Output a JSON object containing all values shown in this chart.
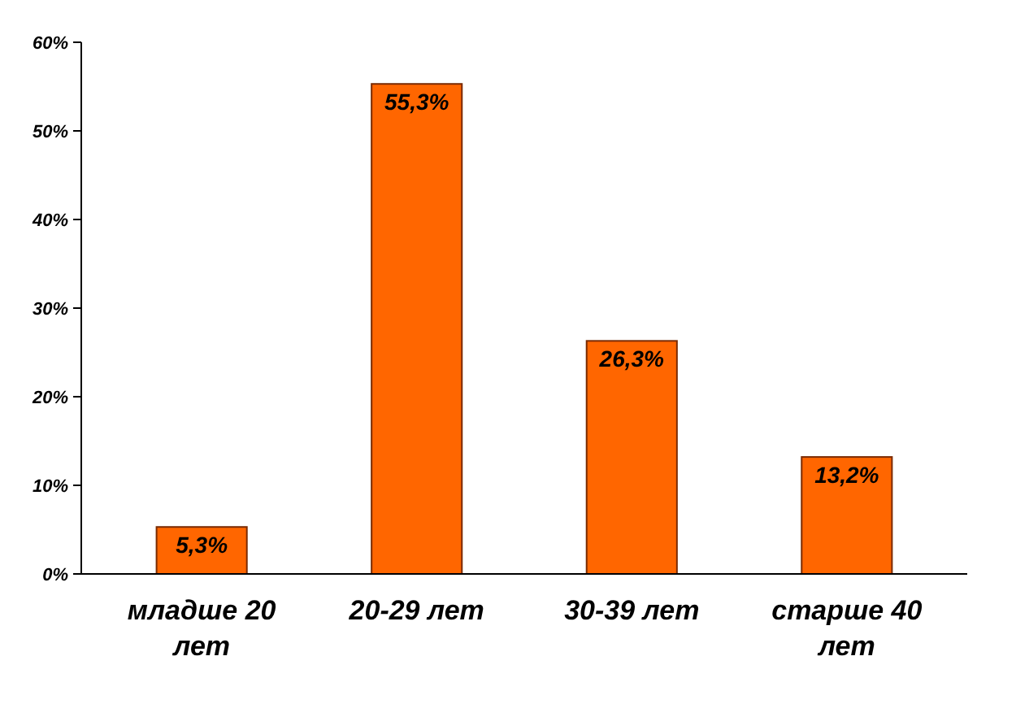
{
  "chart_data": {
    "type": "bar",
    "categories": [
      "младше 20 лет",
      "20-29 лет",
      "30-39 лет",
      "старше 40 лет"
    ],
    "values": [
      5.3,
      55.3,
      26.3,
      13.2
    ],
    "color": "#ff6600",
    "value_labels": [
      "5,3%",
      "55,3%",
      "26,3%",
      "13,2%"
    ],
    "ylim": [
      0,
      60
    ],
    "yticks": [
      {
        "value": 0,
        "label": "0%"
      },
      {
        "value": 10,
        "label": "10%"
      },
      {
        "value": 20,
        "label": "20%"
      },
      {
        "value": 30,
        "label": "30%"
      },
      {
        "value": 40,
        "label": "40%"
      },
      {
        "value": 50,
        "label": "50%"
      },
      {
        "value": 60,
        "label": "60%"
      }
    ]
  }
}
